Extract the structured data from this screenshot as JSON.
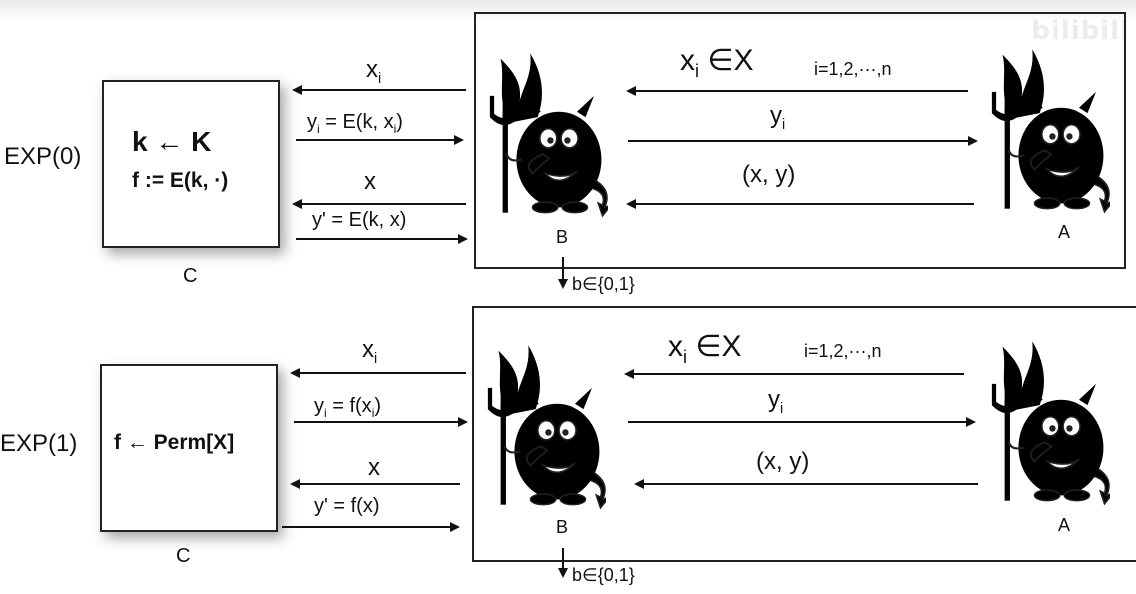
{
  "watermark": "bilibili",
  "experiments": [
    {
      "exp_label": "EXP(0)",
      "challenger_line1": "k ← K",
      "challenger_line2": "f := E(k, ·)",
      "challenger_name": "C",
      "query_label": "x",
      "query_sub": "i",
      "reply_pre": "y",
      "reply_sub": "i",
      "reply_mid": " = E(k, x",
      "reply_sub2": "i",
      "reply_post": ")",
      "challenge_label": "x",
      "final_reply": "y' = E(k, x)",
      "adv_query": "x",
      "adv_query_sub": "i",
      "adv_query_set": " ∈X",
      "index_range": "i=1,2,···,n",
      "adv_reply": "y",
      "adv_reply_sub": "i",
      "adv_output": "(x, y)",
      "b_name": "B",
      "a_name": "A",
      "decision": "b∈{0,1}"
    },
    {
      "exp_label": "EXP(1)",
      "challenger_line1": "f ← Perm[X]",
      "challenger_name": "C",
      "query_label": "x",
      "query_sub": "i",
      "reply_pre": "y",
      "reply_sub": "i",
      "reply_mid": " = f(x",
      "reply_sub2": "i",
      "reply_post": ")",
      "challenge_label": "x",
      "final_reply": "y' = f(x)",
      "adv_query": "x",
      "adv_query_sub": "i",
      "adv_query_set": " ∈X",
      "index_range": "i=1,2,···,n",
      "adv_reply": "y",
      "adv_reply_sub": "i",
      "adv_output": "(x, y)",
      "b_name": "B",
      "a_name": "A",
      "decision": "b∈{0,1}"
    }
  ],
  "colors": {
    "blue_devil": "#6f86c8",
    "red_devil": "#e03a24",
    "flame": "#f29a2e"
  },
  "icons": {
    "b": "blue-devil-icon",
    "a": "red-devil-icon"
  }
}
